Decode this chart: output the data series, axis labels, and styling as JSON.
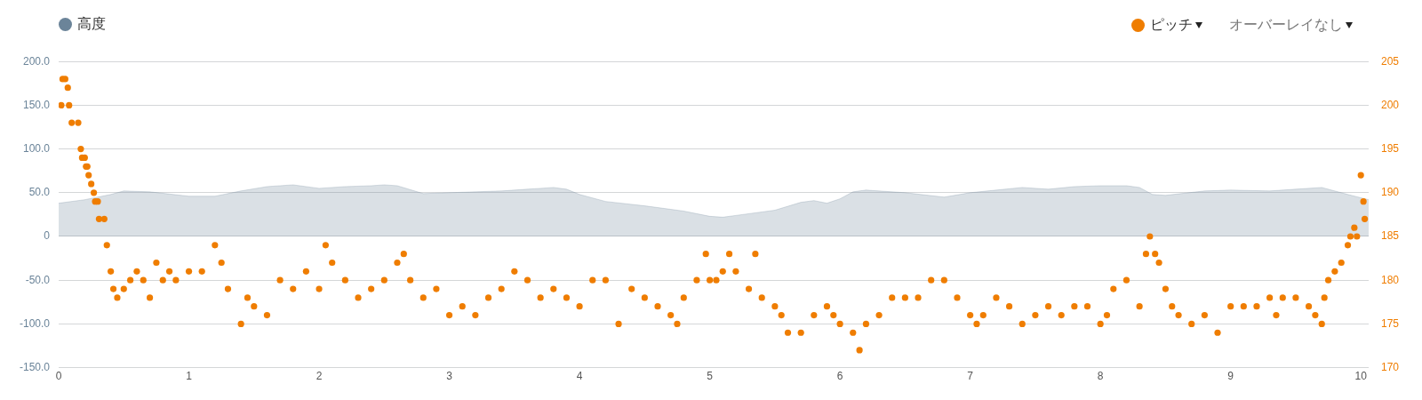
{
  "chart_data": {
    "type": "area",
    "legend": "top",
    "grid": "y",
    "xlim": [
      0,
      10.06
    ],
    "xticks": [
      0,
      1,
      2,
      3,
      4,
      5,
      6,
      7,
      8,
      9,
      10
    ],
    "ylim": [
      -150,
      200
    ],
    "yticks": [
      {
        "value": -150,
        "label": "-150.0"
      },
      {
        "value": -100,
        "label": "-100.0"
      },
      {
        "value": -50,
        "label": "-50.0"
      },
      0,
      {
        "value": 50,
        "label": "50.0"
      },
      {
        "value": 100,
        "label": "100.0"
      },
      {
        "value": 150,
        "label": "150.0"
      },
      {
        "value": 200,
        "label": "200.0"
      }
    ],
    "y2lim": [
      170,
      205
    ],
    "y2ticks": [
      170,
      175,
      180,
      185,
      190,
      195,
      200,
      205
    ],
    "annotations": [
      "オーバーレイなし"
    ],
    "series": [
      {
        "name": "高度",
        "color": "#6b8499",
        "x": [
          0,
          0.2,
          0.4,
          0.5,
          0.7,
          1.0,
          1.2,
          1.4,
          1.6,
          1.8,
          1.9,
          2.0,
          2.2,
          2.4,
          2.5,
          2.6,
          2.8,
          3.0,
          3.2,
          3.4,
          3.6,
          3.7,
          3.8,
          3.9,
          4.0,
          4.2,
          4.5,
          4.8,
          5.0,
          5.1,
          5.2,
          5.5,
          5.7,
          5.8,
          5.9,
          6.0,
          6.1,
          6.2,
          6.5,
          6.8,
          7.0,
          7.2,
          7.4,
          7.6,
          7.8,
          8.0,
          8.2,
          8.3,
          8.4,
          8.5,
          8.8,
          9.0,
          9.3,
          9.5,
          9.7,
          9.9,
          10.06
        ],
        "values": [
          38,
          42,
          48,
          52,
          51,
          46,
          46,
          52,
          57,
          59,
          57,
          55,
          57,
          58,
          59,
          58,
          49,
          50,
          51,
          52,
          54,
          55,
          56,
          54,
          48,
          40,
          35,
          29,
          23,
          22,
          24,
          30,
          39,
          41,
          38,
          43,
          51,
          53,
          50,
          45,
          50,
          53,
          56,
          54,
          57,
          58,
          58,
          56,
          48,
          47,
          52,
          53,
          52,
          54,
          56,
          48,
          42
        ]
      },
      {
        "name": "ピッチ",
        "type": "scatter",
        "axis": "y2",
        "color": "#ef7d00",
        "x": [
          0.02,
          0.03,
          0.05,
          0.07,
          0.08,
          0.1,
          0.15,
          0.17,
          0.18,
          0.2,
          0.21,
          0.22,
          0.23,
          0.25,
          0.27,
          0.28,
          0.3,
          0.31,
          0.35,
          0.37,
          0.4,
          0.42,
          0.45,
          0.5,
          0.55,
          0.6,
          0.65,
          0.7,
          0.75,
          0.8,
          0.85,
          0.9,
          1.0,
          1.1,
          1.2,
          1.25,
          1.3,
          1.4,
          1.45,
          1.5,
          1.6,
          1.7,
          1.8,
          1.9,
          2.0,
          2.05,
          2.1,
          2.2,
          2.3,
          2.4,
          2.5,
          2.6,
          2.65,
          2.7,
          2.8,
          2.9,
          3.0,
          3.1,
          3.2,
          3.3,
          3.4,
          3.5,
          3.6,
          3.7,
          3.8,
          3.9,
          4.0,
          4.1,
          4.2,
          4.3,
          4.4,
          4.5,
          4.6,
          4.7,
          4.75,
          4.8,
          4.9,
          4.97,
          5.0,
          5.05,
          5.1,
          5.15,
          5.2,
          5.3,
          5.35,
          5.4,
          5.5,
          5.55,
          5.6,
          5.7,
          5.8,
          5.9,
          5.95,
          6.0,
          6.1,
          6.15,
          6.2,
          6.3,
          6.4,
          6.5,
          6.6,
          6.7,
          6.8,
          6.9,
          7.0,
          7.05,
          7.1,
          7.2,
          7.3,
          7.4,
          7.5,
          7.6,
          7.7,
          7.8,
          7.9,
          8.0,
          8.05,
          8.1,
          8.2,
          8.3,
          8.35,
          8.38,
          8.42,
          8.45,
          8.5,
          8.55,
          8.6,
          8.7,
          8.8,
          8.9,
          9.0,
          9.1,
          9.2,
          9.3,
          9.35,
          9.4,
          9.5,
          9.6,
          9.65,
          9.7,
          9.72,
          9.75,
          9.8,
          9.85,
          9.9,
          9.92,
          9.95,
          9.97,
          10.0,
          10.02,
          10.03
        ],
        "values": [
          200,
          203,
          203,
          202,
          200,
          198,
          198,
          195,
          194,
          194,
          193,
          193,
          192,
          191,
          190,
          189,
          189,
          187,
          187,
          184,
          181,
          179,
          178,
          179,
          180,
          181,
          180,
          178,
          182,
          180,
          181,
          180,
          181,
          181,
          184,
          182,
          179,
          175,
          178,
          177,
          176,
          180,
          179,
          181,
          179,
          184,
          182,
          180,
          178,
          179,
          180,
          182,
          183,
          180,
          178,
          179,
          176,
          177,
          176,
          178,
          179,
          181,
          180,
          178,
          179,
          178,
          177,
          180,
          180,
          175,
          179,
          178,
          177,
          176,
          175,
          178,
          180,
          183,
          180,
          180,
          181,
          183,
          181,
          179,
          183,
          178,
          177,
          176,
          174,
          174,
          176,
          177,
          176,
          175,
          174,
          172,
          175,
          176,
          178,
          178,
          178,
          180,
          180,
          178,
          176,
          175,
          176,
          178,
          177,
          175,
          176,
          177,
          176,
          177,
          177,
          175,
          176,
          179,
          180,
          177,
          183,
          185,
          183,
          182,
          179,
          177,
          176,
          175,
          176,
          174,
          177,
          177,
          177,
          178,
          176,
          178,
          178,
          177,
          176,
          175,
          178,
          180,
          181,
          182,
          184,
          185,
          186,
          185,
          192,
          189,
          187
        ]
      }
    ]
  }
}
